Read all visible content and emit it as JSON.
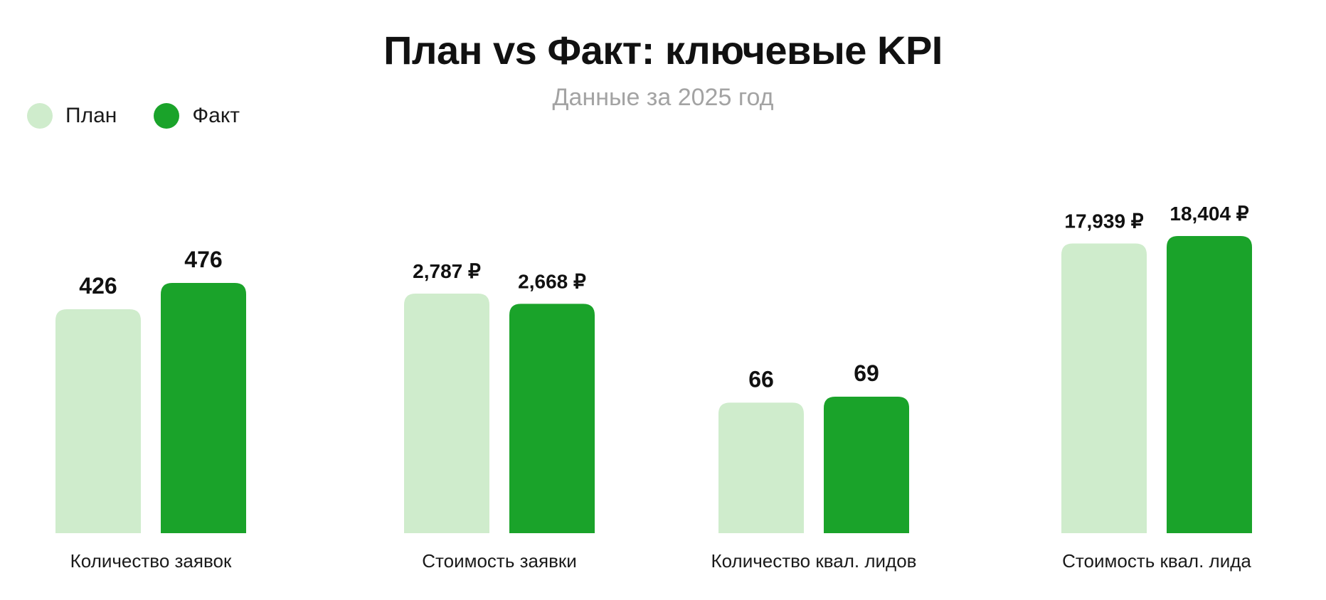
{
  "chart_data": {
    "type": "bar",
    "title": "План vs Факт: ключевые KPI",
    "subtitle": "Данные за 2025 год",
    "legend_position": "top-left",
    "categories": [
      "Количество заявок",
      "Стоимость заявки",
      "Количество квал. лидов",
      "Стоимость квал. лида"
    ],
    "series": [
      {
        "name": "План",
        "color": "#cfeccc",
        "values": [
          426,
          2787,
          66,
          17939
        ],
        "labels": [
          "426",
          "2,787 ₽",
          "66",
          "17,939 ₽"
        ]
      },
      {
        "name": "Факт",
        "color": "#1aa32a",
        "values": [
          476,
          2668,
          69,
          18404
        ],
        "labels": [
          "476",
          "2,668 ₽",
          "69",
          "18,404 ₽"
        ]
      }
    ],
    "grid": false,
    "independent_scales": true
  }
}
